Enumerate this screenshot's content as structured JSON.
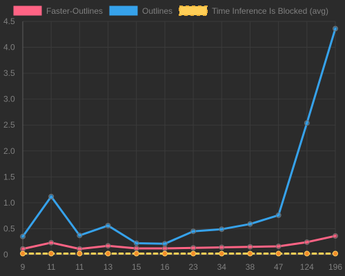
{
  "chart_data": {
    "type": "line",
    "title": "",
    "xlabel": "",
    "ylabel": "",
    "categories": [
      "9",
      "11",
      "11",
      "13",
      "15",
      "16",
      "23",
      "34",
      "38",
      "47",
      "124",
      "196"
    ],
    "ylim": [
      0,
      4.5
    ],
    "y_ticks": [
      "0",
      "0.5",
      "1.0",
      "1.5",
      "2.0",
      "2.5",
      "3.0",
      "3.5",
      "4.0",
      "4.5"
    ],
    "grid": true,
    "legend_position": "top",
    "series": [
      {
        "name": "Faster-Outlines",
        "color": "#ff6384",
        "style": "solid",
        "values": [
          0.11,
          0.23,
          0.11,
          0.17,
          0.12,
          0.12,
          0.13,
          0.14,
          0.15,
          0.16,
          0.24,
          0.36
        ]
      },
      {
        "name": "Outlines",
        "color": "#36a2eb",
        "style": "solid",
        "values": [
          0.35,
          1.12,
          0.37,
          0.56,
          0.22,
          0.21,
          0.45,
          0.49,
          0.59,
          0.76,
          2.54,
          4.36
        ]
      },
      {
        "name": "Time Inference Is Blocked (avg)",
        "color": "#ffce56",
        "style": "dashed",
        "values": [
          0.02,
          0.02,
          0.02,
          0.02,
          0.02,
          0.02,
          0.02,
          0.02,
          0.02,
          0.02,
          0.02,
          0.02
        ]
      }
    ]
  }
}
